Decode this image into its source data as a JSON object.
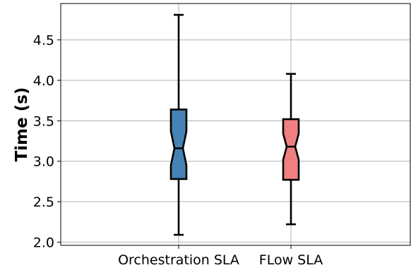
{
  "chart_data": {
    "type": "boxplot",
    "title": "",
    "xlabel": "",
    "ylabel": "Time (s)",
    "ylim": [
      1.96,
      4.95
    ],
    "yticks": [
      2.0,
      2.5,
      3.0,
      3.5,
      4.0,
      4.5
    ],
    "ytick_labels": [
      "2.0",
      "2.5",
      "3.0",
      "3.5",
      "4.0",
      "4.5"
    ],
    "grid": true,
    "notched": true,
    "categories": [
      "Orchestration SLA",
      "FLow SLA"
    ],
    "boxes": [
      {
        "name": "Orchestration SLA",
        "whisker_low": 2.09,
        "q1": 2.78,
        "notch_low": 2.95,
        "median": 3.16,
        "notch_high": 3.37,
        "q3": 3.64,
        "whisker_high": 4.81,
        "color": "#4682b4"
      },
      {
        "name": "FLow SLA",
        "whisker_low": 2.22,
        "q1": 2.77,
        "notch_low": 3.02,
        "median": 3.18,
        "notch_high": 3.34,
        "q3": 3.52,
        "whisker_high": 4.08,
        "color": "#f08080"
      }
    ]
  }
}
